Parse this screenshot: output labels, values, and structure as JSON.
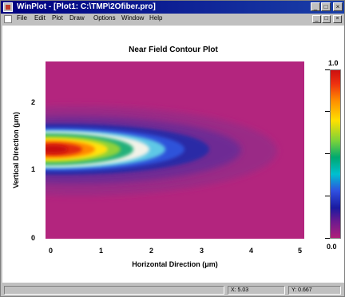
{
  "window": {
    "title": "WinPlot - [Plot1: C:\\TMP\\2Ofiber.pro]",
    "controls": [
      "_",
      "□",
      "×"
    ]
  },
  "menu": {
    "items": [
      "File",
      "Edit",
      "Plot",
      "Draw",
      "Options",
      "Window",
      "Help"
    ],
    "mdi_controls": [
      "_",
      "□",
      "×"
    ]
  },
  "plot": {
    "title": "Near Field Contour Plot",
    "xlabel": "Horizontal Direction (μm)",
    "ylabel": "Vertical Direction (μm)",
    "xticks": [
      "0",
      "1",
      "2",
      "3",
      "4",
      "5"
    ],
    "yticks": [
      "2",
      "1",
      "0"
    ],
    "colorbar": {
      "top": "1.0",
      "bottom": "0.0"
    }
  },
  "colors": {
    "background_field": "#b3257e",
    "titlebar": "#000080"
  },
  "status": {
    "left": "",
    "x": "X: 5.03",
    "y": "Y: 0.667"
  }
}
